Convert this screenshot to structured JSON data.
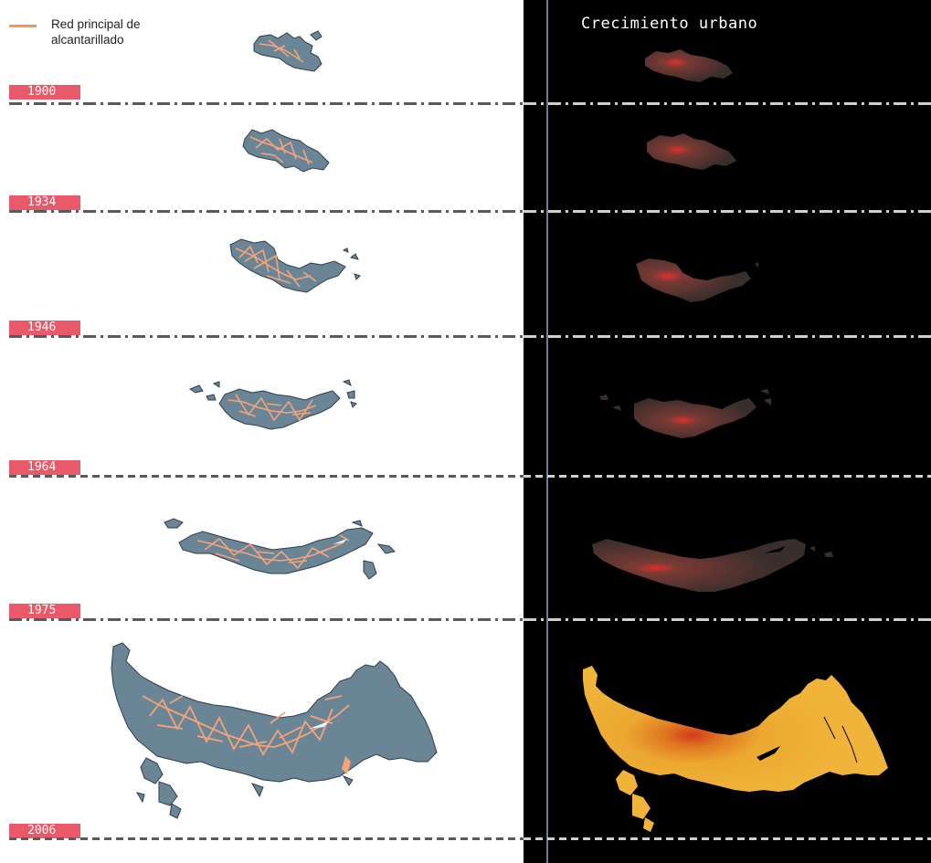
{
  "legend": {
    "label": "Red principal de alcantarillado",
    "line_color": "#f39a4c"
  },
  "right_panel": {
    "title": "Crecimiento urbano"
  },
  "colors": {
    "city_fill": "#6a8596",
    "city_stroke": "#2f3e4a",
    "sewer": "#f5a47a",
    "growth_base": "#4a3a38",
    "growth_core": "#e0302c",
    "growth_2006": "#f0b43a",
    "label_bg": "#e85a6a",
    "divider_dark": "#5a5a5a",
    "divider_light": "#cfcfcf"
  },
  "periods": [
    {
      "year": "1900"
    },
    {
      "year": "1934"
    },
    {
      "year": "1946"
    },
    {
      "year": "1964"
    },
    {
      "year": "1975"
    },
    {
      "year": "2006"
    }
  ]
}
